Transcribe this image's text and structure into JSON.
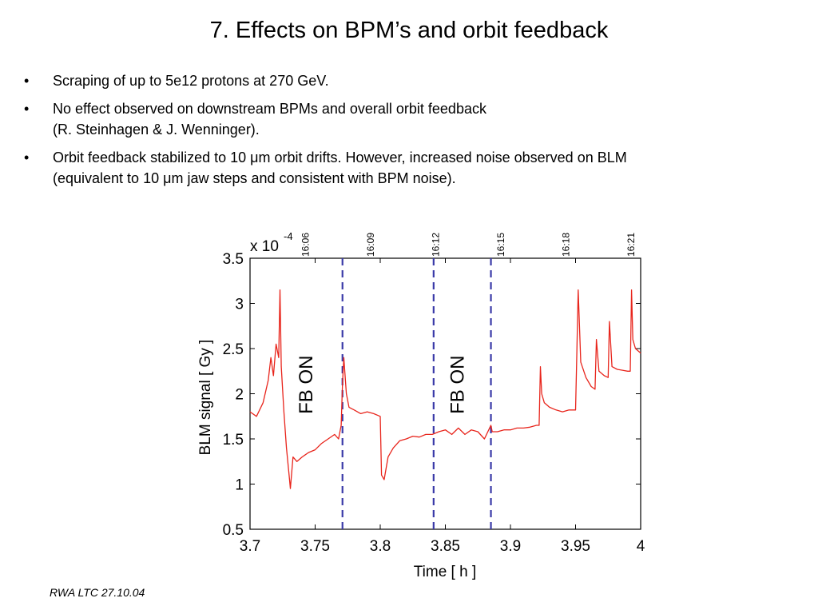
{
  "slide": {
    "title": "7. Effects on BPM’s and orbit feedback",
    "bullet_marker": "•",
    "bullets": [
      {
        "line1": "Scraping of up to 5e12 protons at 270 GeV.",
        "line2": ""
      },
      {
        "line1": "No effect observed on downstream BPMs and overall orbit feedback",
        "line2": "(R. Steinhagen & J. Wenninger)."
      },
      {
        "line1": "Orbit feedback stabilized to 10 μm orbit drifts. However, increased noise observed on BLM",
        "line2": "(equivalent to 10 μm jaw steps and consistent with BPM noise)."
      }
    ],
    "footer": "RWA LTC 27.10.04"
  },
  "chart_data": {
    "type": "line",
    "xlabel": "Time [ h ]",
    "ylabel": "BLM signal [ Gy ]",
    "y_multiplier_label": "x 10",
    "y_multiplier_exp": "-4",
    "xlim": [
      3.7,
      4.0
    ],
    "ylim": [
      0.5,
      3.5
    ],
    "x_ticks": [
      "3.7",
      "3.75",
      "3.8",
      "3.85",
      "3.9",
      "3.95",
      "4"
    ],
    "y_ticks": [
      "0.5",
      "1",
      "1.5",
      "2",
      "2.5",
      "3",
      "3.5"
    ],
    "top_time_ticks": [
      {
        "label": "16:06",
        "x": 3.7425
      },
      {
        "label": "16:09",
        "x": 3.7925
      },
      {
        "label": "16:12",
        "x": 3.8425
      },
      {
        "label": "16:15",
        "x": 3.8925
      },
      {
        "label": "16:18",
        "x": 3.9425
      },
      {
        "label": "16:21",
        "x": 3.9925
      }
    ],
    "vlines": [
      3.771,
      3.841,
      3.885
    ],
    "annotations": [
      {
        "text": "FB ON",
        "x": 3.748,
        "y": 2.1
      },
      {
        "text": "FB ON",
        "x": 3.864,
        "y": 2.1
      }
    ],
    "colors": {
      "series": "#e8251c",
      "vline": "#3a3aa8"
    },
    "series": [
      {
        "x": [
          3.7,
          3.705,
          3.71,
          3.714,
          3.716,
          3.718,
          3.72,
          3.722,
          3.723,
          3.724,
          3.726,
          3.728,
          3.73,
          3.731,
          3.733,
          3.736,
          3.74,
          3.745,
          3.75,
          3.755,
          3.76,
          3.765,
          3.768,
          3.77,
          3.771,
          3.772,
          3.774,
          3.776,
          3.78,
          3.785,
          3.79,
          3.795,
          3.8,
          3.801,
          3.803,
          3.806,
          3.81,
          3.815,
          3.82,
          3.825,
          3.83,
          3.835,
          3.84,
          3.845,
          3.85,
          3.855,
          3.86,
          3.865,
          3.87,
          3.875,
          3.88,
          3.885,
          3.886,
          3.89,
          3.895,
          3.9,
          3.905,
          3.91,
          3.915,
          3.92,
          3.922,
          3.923,
          3.924,
          3.926,
          3.93,
          3.935,
          3.94,
          3.945,
          3.95,
          3.951,
          3.952,
          3.954,
          3.958,
          3.962,
          3.965,
          3.966,
          3.968,
          3.972,
          3.975,
          3.976,
          3.978,
          3.982,
          3.986,
          3.99,
          3.992,
          3.993,
          3.994,
          3.996,
          4.0
        ],
        "y": [
          1.8,
          1.75,
          1.9,
          2.15,
          2.4,
          2.2,
          2.55,
          2.4,
          3.15,
          2.3,
          1.8,
          1.4,
          1.1,
          0.95,
          1.3,
          1.25,
          1.3,
          1.35,
          1.38,
          1.45,
          1.5,
          1.55,
          1.5,
          1.65,
          2.1,
          2.4,
          2.0,
          1.85,
          1.82,
          1.78,
          1.8,
          1.78,
          1.75,
          1.1,
          1.05,
          1.3,
          1.4,
          1.48,
          1.5,
          1.53,
          1.52,
          1.55,
          1.55,
          1.58,
          1.6,
          1.55,
          1.62,
          1.55,
          1.6,
          1.58,
          1.5,
          1.65,
          1.58,
          1.58,
          1.6,
          1.6,
          1.62,
          1.62,
          1.63,
          1.65,
          1.65,
          2.3,
          2.0,
          1.9,
          1.85,
          1.82,
          1.8,
          1.82,
          1.82,
          2.45,
          3.15,
          2.35,
          2.18,
          2.08,
          2.05,
          2.6,
          2.25,
          2.2,
          2.18,
          2.8,
          2.3,
          2.27,
          2.26,
          2.25,
          2.25,
          3.15,
          2.6,
          2.5,
          2.45
        ]
      }
    ]
  }
}
